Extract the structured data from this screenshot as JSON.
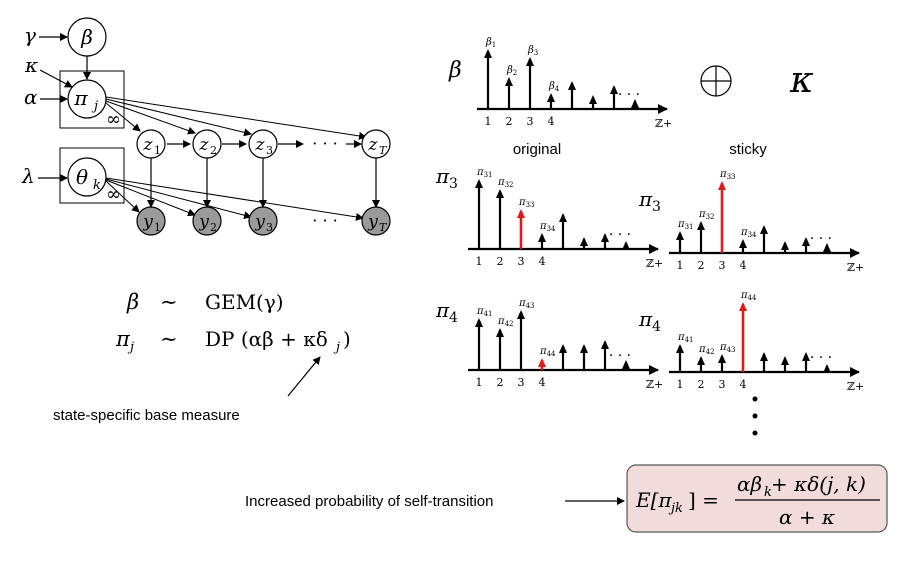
{
  "graphical_model": {
    "hyper_gamma": "γ",
    "hyper_kappa": "κ",
    "hyper_alpha": "α",
    "hyper_lambda": "λ",
    "node_beta": "β",
    "node_pi_base": "π",
    "node_pi_sub": "j",
    "node_theta_base": "θ",
    "node_theta_sub": "k",
    "plate_label": "∞",
    "z_nodes": [
      {
        "base": "z",
        "sub": "1"
      },
      {
        "base": "z",
        "sub": "2"
      },
      {
        "base": "z",
        "sub": "3"
      },
      {
        "base": "z",
        "sub": "T"
      }
    ],
    "y_nodes": [
      {
        "base": "y",
        "sub": "1"
      },
      {
        "base": "y",
        "sub": "2"
      },
      {
        "base": "y",
        "sub": "3"
      },
      {
        "base": "y",
        "sub": "T"
      }
    ],
    "dots": "· · ·"
  },
  "equations": {
    "line1_lhs": "β",
    "line1_sim": "∼",
    "line1_rhs": "GEM(γ)",
    "line2_lhs_base": "π",
    "line2_lhs_sub": "j",
    "line2_sim": "∼",
    "line2_rhs": "DP (αβ + κδ",
    "line2_rhs_sub": "j",
    "line2_rhs_close": ")",
    "annotation": "state-specific base measure"
  },
  "stick_panels": {
    "beta_label": "β",
    "beta_stick_labels": [
      "β1",
      "β2",
      "β3",
      "β4"
    ],
    "oplus": "⊕",
    "kappa": "κ",
    "column_original": "original",
    "column_sticky": "sticky",
    "z_plus": "ℤ+",
    "ellipsis": "· · ·",
    "x_ticks": [
      "1",
      "2",
      "3",
      "4"
    ],
    "pi3_label_base": "π",
    "pi3_label_sub": "3",
    "pi4_label_base": "π",
    "pi4_label_sub": "4",
    "pi3_orig_labels": [
      "π31",
      "π32",
      "π33",
      "π34"
    ],
    "pi3_sticky_labels": [
      "π31",
      "π32",
      "π33",
      "π34"
    ],
    "pi4_orig_labels": [
      "π41",
      "π42",
      "π43",
      "π44"
    ],
    "pi4_sticky_labels": [
      "π41",
      "π42",
      "π43",
      "π44"
    ],
    "vertical_dots": "⋮",
    "highlight_color": "#e0191b"
  },
  "bottom": {
    "caption": "Increased probability of self-transition",
    "formula_lhs": "E[π",
    "formula_lhs_sub": "jk",
    "formula_lhs_close": "] =",
    "formula_num": "αβ",
    "formula_num_sub": "k",
    "formula_num_rest": " + κδ(j, k)",
    "formula_den": "α + κ",
    "box_fill": "#f2dcdb"
  }
}
